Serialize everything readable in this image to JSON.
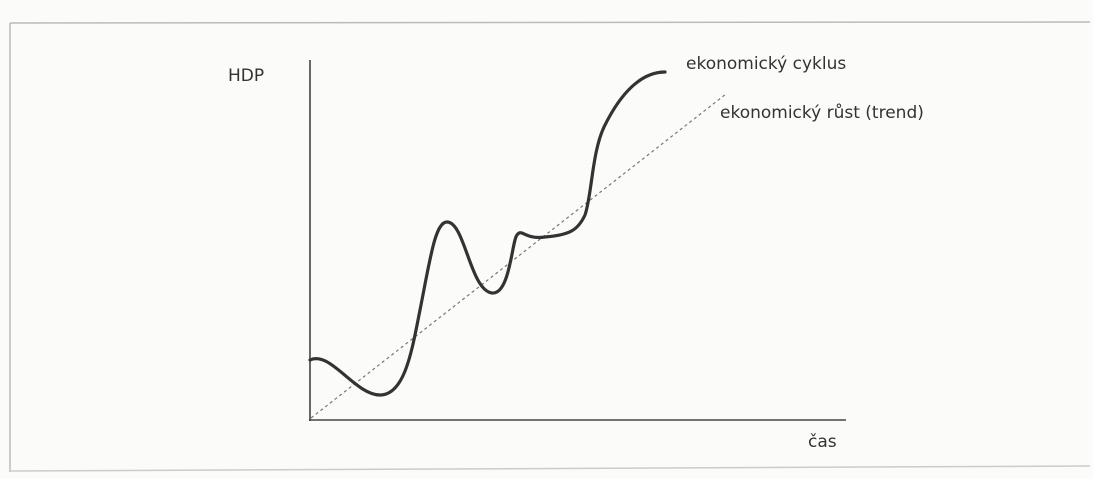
{
  "labels": {
    "y_axis": "HDP",
    "x_axis": "čas",
    "cycle": "ekonomický cyklus",
    "trend": "ekonomický růst (trend)"
  }
}
